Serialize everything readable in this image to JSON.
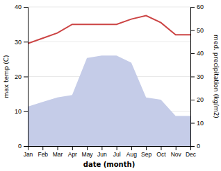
{
  "chart_data": {
    "type": "line",
    "categories": [
      "Jan",
      "Feb",
      "Mar",
      "Apr",
      "May",
      "Jun",
      "Jul",
      "Aug",
      "Sep",
      "Oct",
      "Nov",
      "Dec"
    ],
    "series": [
      {
        "type": "area",
        "color": "#c5cce8",
        "axis": "y2",
        "values": [
          17,
          19,
          21,
          22,
          38,
          39,
          39,
          36,
          21,
          20,
          13,
          13
        ]
      },
      {
        "type": "line",
        "color": "#cc4444",
        "values": [
          29.5,
          31.0,
          32.5,
          35.0,
          35.0,
          35.0,
          35.0,
          36.5,
          37.5,
          35.5,
          32.0,
          32.0
        ]
      }
    ],
    "xlabel": "date (month)",
    "ylabel": "max temp (C)",
    "y2label": "med. precipitation (kg/m2)",
    "ylim": [
      0,
      40
    ],
    "yticks": [
      0,
      10,
      20,
      30,
      40
    ],
    "y2lim": [
      0,
      60
    ],
    "y2ticks": [
      0,
      10,
      20,
      30,
      40,
      50,
      60
    ],
    "grid": true
  }
}
